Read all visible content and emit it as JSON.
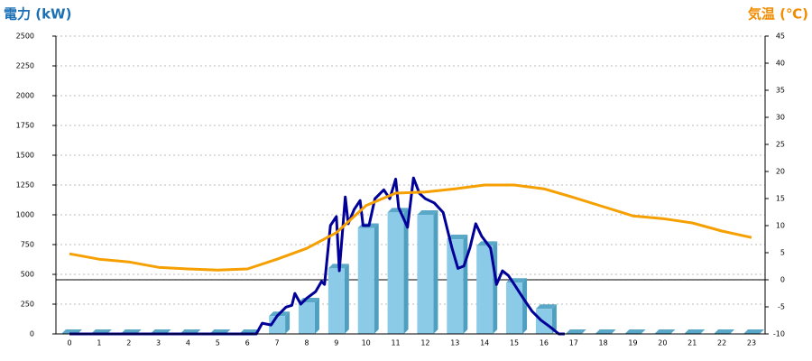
{
  "chart_data": {
    "type": "bar",
    "title": "電力 (kW)",
    "y2_title": "気温 (℃)",
    "categories": [
      "0",
      "1",
      "2",
      "3",
      "4",
      "5",
      "6",
      "7",
      "8",
      "9",
      "10",
      "11",
      "12",
      "13",
      "14",
      "15",
      "16",
      "17",
      "18",
      "19",
      "20",
      "21",
      "22",
      "23"
    ],
    "ylim": [
      0,
      2500
    ],
    "yticks": [
      0,
      250,
      500,
      750,
      1000,
      1250,
      1500,
      1750,
      2000,
      2250,
      2500
    ],
    "y2lim": [
      -10,
      45
    ],
    "y2ticks": [
      -10,
      -5,
      0,
      5,
      10,
      15,
      20,
      25,
      30,
      35,
      40,
      45
    ],
    "grid": true,
    "series": [
      {
        "type": "bar",
        "color": "#8ccbe8",
        "values": [
          0,
          0,
          0,
          0,
          0,
          0,
          0,
          150,
          265,
          550,
          890,
          1020,
          1000,
          795,
          740,
          430,
          210,
          0,
          0,
          0,
          0,
          0,
          0,
          0
        ]
      },
      {
        "type": "line",
        "color": "#000099",
        "x": [
          0,
          6.3,
          6.5,
          6.8,
          7.0,
          7.3,
          7.5,
          7.6,
          7.8,
          8.0,
          8.3,
          8.5,
          8.6,
          8.8,
          9.0,
          9.1,
          9.3,
          9.4,
          9.6,
          9.8,
          9.9,
          10.1,
          10.3,
          10.6,
          10.8,
          11.0,
          11.1,
          11.4,
          11.6,
          11.8,
          12.0,
          12.3,
          12.6,
          12.9,
          13.1,
          13.3,
          13.5,
          13.7,
          13.9,
          14.2,
          14.4,
          14.6,
          14.8,
          15.0,
          15.3,
          15.6,
          15.9,
          16.2,
          16.5,
          16.7
        ],
        "values": [
          0,
          0,
          90,
          75,
          150,
          225,
          240,
          340,
          250,
          300,
          355,
          440,
          415,
          910,
          985,
          530,
          1150,
          925,
          1045,
          1120,
          910,
          910,
          1135,
          1210,
          1135,
          1300,
          1060,
          895,
          1310,
          1180,
          1135,
          1100,
          1020,
          720,
          550,
          570,
          720,
          925,
          820,
          720,
          415,
          530,
          490,
          415,
          300,
          190,
          115,
          60,
          0,
          0
        ]
      },
      {
        "type": "line",
        "axis": "y2",
        "color": "#f5a000",
        "values": [
          4.8,
          3.8,
          3.3,
          2.3,
          2.0,
          1.8,
          2.0,
          3.8,
          5.8,
          8.7,
          13.7,
          16,
          16.2,
          16.8,
          17.5,
          17.5,
          16.8,
          15.2,
          13.5,
          11.8,
          11.3,
          10.5,
          9,
          7.8
        ]
      }
    ]
  }
}
